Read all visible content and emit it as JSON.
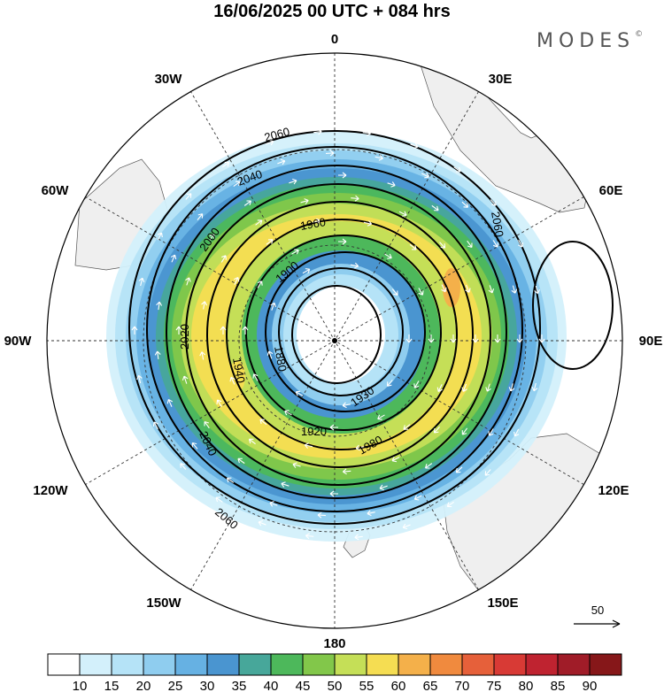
{
  "header": {
    "title": "16/06/2025  00 UTC  + 084 hrs",
    "brand": "MODES",
    "brand_mark": "©"
  },
  "map": {
    "projection": "south-polar-stereographic",
    "longitude_labels": {
      "top": "0",
      "top_right": "30E",
      "right_upper": "60E",
      "right": "90E",
      "right_lower": "120E",
      "bottom_right": "150E",
      "bottom": "180",
      "bottom_left": "150W",
      "left_lower": "120W",
      "left": "90W",
      "left_upper": "60W",
      "top_left": "30W"
    },
    "contour_units": "geopotential height (m)",
    "contour_labels": [
      "2060",
      "2040",
      "1960",
      "2000",
      "1900",
      "2020",
      "1940",
      "1880",
      "1930",
      "1920",
      "1980",
      "2040",
      "2060",
      "2060"
    ],
    "contour_levels": [
      1880,
      1900,
      1920,
      1940,
      1960,
      1980,
      2000,
      2020,
      2040,
      2060
    ],
    "reference_vector_label": "50",
    "colors": {
      "land": "#efefef",
      "ocean": "#ffffff",
      "contour": "#000000",
      "wind_vectors": "#ffffff"
    }
  },
  "colorbar": {
    "ticks": [
      "10",
      "15",
      "20",
      "25",
      "30",
      "35",
      "40",
      "45",
      "50",
      "55",
      "60",
      "65",
      "70",
      "75",
      "80",
      "85",
      "90"
    ],
    "colors": [
      "#ffffff",
      "#d3f0fb",
      "#b5e3f7",
      "#8fcdef",
      "#66b1e3",
      "#4a95d0",
      "#47a79a",
      "#4db85b",
      "#82c74a",
      "#c5df57",
      "#f5dd52",
      "#f4b04a",
      "#f08a3e",
      "#e6603a",
      "#d83a35",
      "#bf2330",
      "#a01c28",
      "#861719"
    ]
  }
}
